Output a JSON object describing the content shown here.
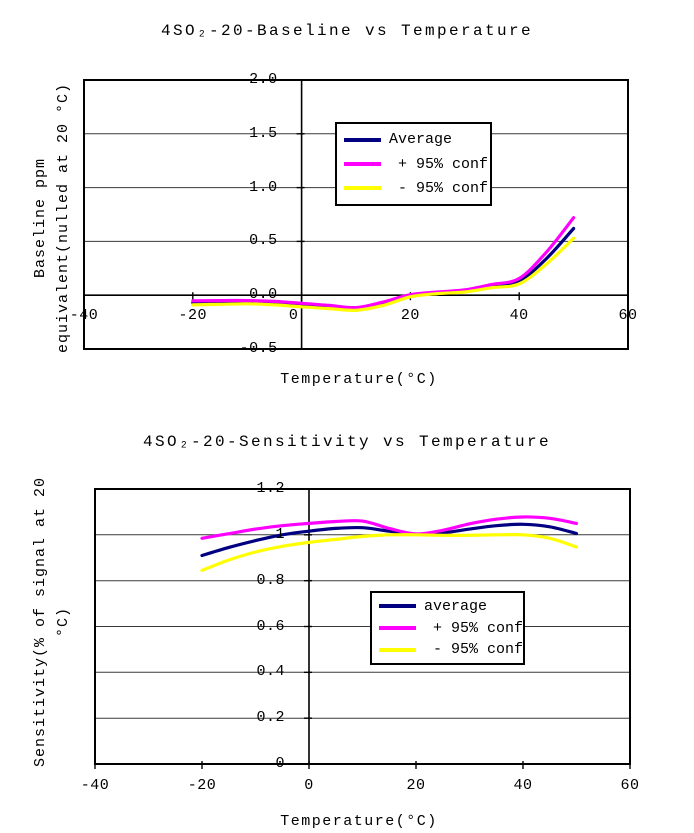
{
  "page": {
    "background": "#FFFFFF",
    "text_color": "#000000"
  },
  "chart_data": [
    {
      "type": "line",
      "title": "4SO₂-20-Baseline vs Temperature",
      "xlabel": "Temperature(°C)",
      "ylabel_line1": "Baseline ppm",
      "ylabel_line2": "equivalent(nulled at 20 °C)",
      "xlim": [
        -40,
        60
      ],
      "ylim": [
        -0.5,
        2.0
      ],
      "xticks": [
        -40,
        -20,
        0,
        20,
        40,
        60
      ],
      "xtick_labels": [
        "-40",
        "-20",
        "0",
        "20",
        "40",
        "60"
      ],
      "yticks": [
        2.0,
        1.5,
        1.0,
        0.5,
        0.0,
        -0.5
      ],
      "ytick_labels": [
        "2.0",
        "1.5",
        "1.0",
        "0.5",
        "0.0",
        "-0.5"
      ],
      "axis_cross_x": 0,
      "axis_cross_y": 0.0,
      "grid": true,
      "legend_position": "upper-center",
      "x": [
        -20,
        -15,
        -10,
        -5,
        0,
        5,
        10,
        15,
        20,
        25,
        30,
        35,
        40,
        45,
        50
      ],
      "series": [
        {
          "name": "Average",
          "color": "#000080",
          "values": [
            -0.07,
            -0.068,
            -0.065,
            -0.072,
            -0.09,
            -0.11,
            -0.125,
            -0.08,
            -0.005,
            0.02,
            0.04,
            0.085,
            0.13,
            0.34,
            0.62
          ]
        },
        {
          "name": "+ 95% conf",
          "color": "#FF00FF",
          "values": [
            -0.053,
            -0.05,
            -0.05,
            -0.058,
            -0.075,
            -0.095,
            -0.115,
            -0.063,
            0.005,
            0.03,
            0.05,
            0.1,
            0.155,
            0.4,
            0.72
          ]
        },
        {
          "name": "- 95% conf",
          "color": "#FFFF00",
          "values": [
            -0.09,
            -0.085,
            -0.08,
            -0.09,
            -0.108,
            -0.125,
            -0.14,
            -0.095,
            -0.015,
            0.015,
            0.03,
            0.07,
            0.105,
            0.29,
            0.53
          ]
        }
      ]
    },
    {
      "type": "line",
      "title": "4SO₂-20-Sensitivity vs Temperature",
      "xlabel": "Temperature(°C)",
      "ylabel_line1": "Sensitivity(% of signal at 20",
      "ylabel_line2": "°C)",
      "xlim": [
        -40,
        60
      ],
      "ylim": [
        0,
        1.2
      ],
      "xticks": [
        -40,
        -20,
        0,
        20,
        40,
        60
      ],
      "xtick_labels": [
        "-40",
        "-20",
        "0",
        "20",
        "40",
        "60"
      ],
      "yticks": [
        1.2,
        1.0,
        0.8,
        0.6,
        0.4,
        0.2,
        0
      ],
      "ytick_labels": [
        "1.2",
        "1",
        "0.8",
        "0.6",
        "0.4",
        "0.2",
        "0"
      ],
      "axis_cross_x": 0,
      "axis_cross_y": 0,
      "grid": true,
      "legend_position": "center-right",
      "x": [
        -20,
        -15,
        -10,
        -5,
        0,
        5,
        10,
        15,
        20,
        25,
        30,
        35,
        40,
        45,
        50
      ],
      "series": [
        {
          "name": "average",
          "color": "#000080",
          "values": [
            0.91,
            0.945,
            0.975,
            1.0,
            1.016,
            1.028,
            1.031,
            1.016,
            1.002,
            1.008,
            1.025,
            1.04,
            1.046,
            1.035,
            1.006
          ]
        },
        {
          "name": "+ 95% conf",
          "color": "#FF00FF",
          "values": [
            0.985,
            1.005,
            1.025,
            1.04,
            1.05,
            1.058,
            1.06,
            1.028,
            1.004,
            1.02,
            1.048,
            1.068,
            1.078,
            1.072,
            1.05
          ]
        },
        {
          "name": "- 95% conf",
          "color": "#FFFF00",
          "values": [
            0.845,
            0.89,
            0.925,
            0.95,
            0.967,
            0.98,
            0.993,
            1.0,
            1.0,
            0.998,
            0.998,
            1.0,
            1.0,
            0.985,
            0.947
          ]
        }
      ]
    }
  ]
}
